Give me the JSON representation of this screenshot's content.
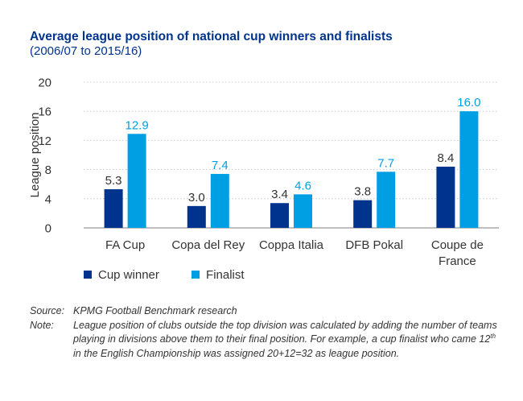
{
  "title": "Average league position of national cup winners and finalists",
  "subtitle": "(2006/07 to 2015/16)",
  "colors": {
    "cup_winner": "#00338d",
    "finalist": "#009fe3",
    "grid": "#c8c8c8",
    "text": "#333333"
  },
  "chart_data": {
    "type": "bar",
    "title": "Average league position of national cup winners and finalists",
    "subtitle": "(2006/07 to 2015/16)",
    "xlabel": "",
    "ylabel": "League position",
    "ylim": [
      0,
      20
    ],
    "yticks": [
      0,
      4,
      8,
      12,
      16,
      20
    ],
    "grid": true,
    "legend_position": "bottom-left",
    "categories": [
      [
        "FA Cup"
      ],
      [
        "Copa del Rey"
      ],
      [
        "Coppa Italia"
      ],
      [
        "DFB Pokal"
      ],
      [
        "Coupe de",
        "France"
      ]
    ],
    "series": [
      {
        "name": "Cup winner",
        "color": "#00338d",
        "values": [
          5.3,
          3.0,
          3.4,
          3.8,
          8.4
        ],
        "labels": [
          "5.3",
          "3.0",
          "3.4",
          "3.8",
          "8.4"
        ]
      },
      {
        "name": "Finalist",
        "color": "#009fe3",
        "values": [
          12.9,
          7.4,
          4.6,
          7.7,
          16.0
        ],
        "labels": [
          "12.9",
          "7.4",
          "4.6",
          "7.7",
          "16.0"
        ]
      }
    ]
  },
  "notes": {
    "source_label": "Source:",
    "source_text": "KPMG Football Benchmark research",
    "note_label": "Note:",
    "note_text_1": "League position of clubs outside the top division was calculated by adding the number of teams playing in divisions above them to their final position. For example, a cup finalist who came 12",
    "note_sup": "th",
    "note_text_2": " in the English Championship was assigned 20+12=32 as league position."
  }
}
